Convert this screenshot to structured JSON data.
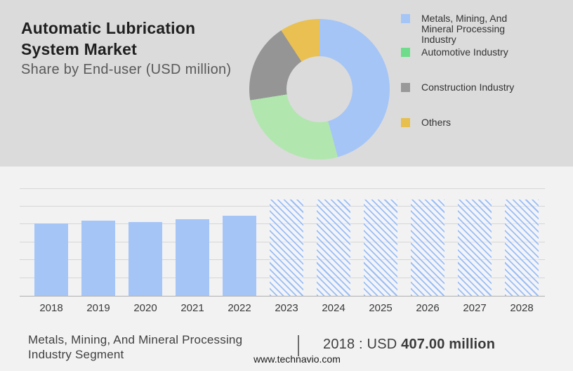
{
  "header": {
    "title": "Automatic Lubrication System Market",
    "subtitle": "Share by End-user (USD million)"
  },
  "colors": {
    "top_band_bg": "#dbdbdb",
    "bottom_bg": "#f2f2f3",
    "bar_blue": "#a5c5f7",
    "gridline": "#d6d6d6",
    "axis_line": "#b0b0b0"
  },
  "legend": {
    "items": [
      {
        "label": "Metals, Mining, And Mineral Processing Industry",
        "color": "#a5c5f7"
      },
      {
        "label": "Automotive Industry",
        "color": "#6edc8b"
      },
      {
        "label": "Construction Industry",
        "color": "#999999"
      },
      {
        "label": "Others",
        "color": "#e6bf4f"
      }
    ]
  },
  "chart_data": [
    {
      "type": "pie",
      "donut": true,
      "title": "Share by End-user (USD million)",
      "labels": [
        "Metals, Mining, And Mineral Processing Industry",
        "Automotive Industry",
        "Construction Industry",
        "Others"
      ],
      "values_percent": [
        45.8,
        26.7,
        18.3,
        9.2
      ],
      "colors": [
        "#a5c5f7",
        "#b1e6af",
        "#959595",
        "#e9c051"
      ],
      "legend_position": "right",
      "start_angle_deg": 0
    },
    {
      "type": "bar",
      "title": "",
      "xlabel": "",
      "ylabel": "",
      "categories": [
        "2018",
        "2019",
        "2020",
        "2021",
        "2022",
        "2023",
        "2024",
        "2025",
        "2026",
        "2027",
        "2028"
      ],
      "values": [
        407,
        422,
        412,
        430,
        450,
        540,
        540,
        540,
        540,
        540,
        540
      ],
      "labeled_point": {
        "year": "2018",
        "value_text": "407.00 million"
      },
      "forecast_from": "2023",
      "forecast_style": "diagonal-hatch",
      "ylim": [
        0,
        650
      ],
      "gridlines": [
        100,
        200,
        300,
        400,
        500,
        600
      ],
      "grid": true,
      "legend_position": "none"
    }
  ],
  "footer": {
    "segment_line1": "Metals, Mining, And Mineral Processing",
    "segment_line2": "Industry Segment",
    "separator": "|",
    "value_prefix": "2018 : USD ",
    "value_bold": "407.00 million",
    "website": "www.technavio.com"
  }
}
